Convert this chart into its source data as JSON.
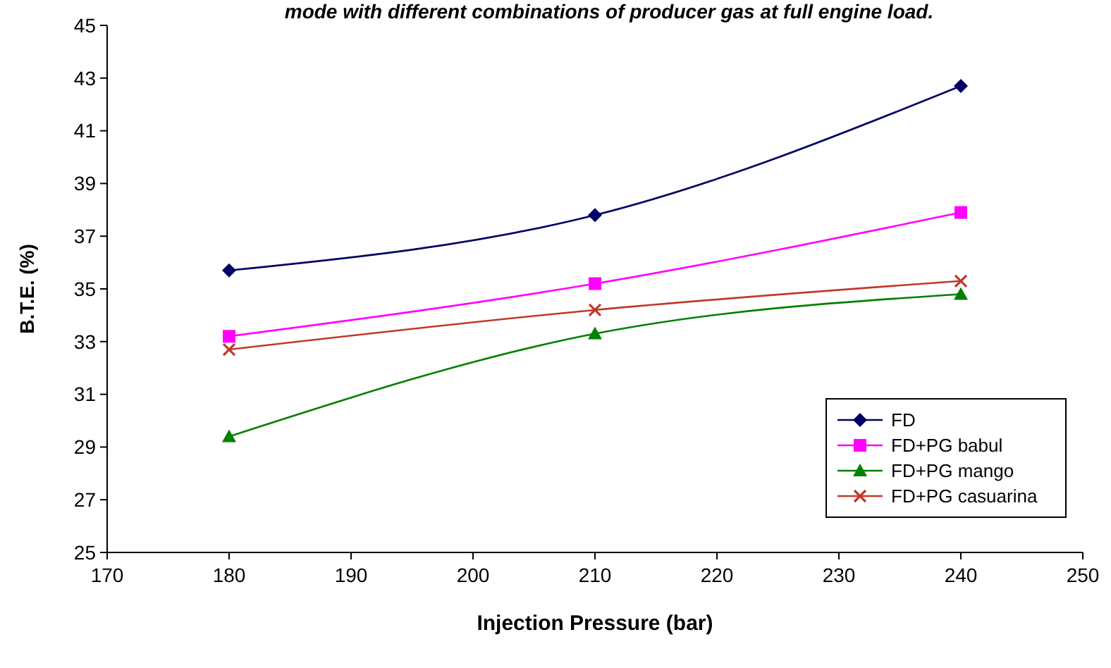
{
  "chart_data": {
    "type": "line",
    "title": "mode with different combinations of producer gas at full engine load.",
    "xlabel": "Injection Pressure (bar)",
    "ylabel": "B.T.E. (%)",
    "x": [
      180,
      210,
      240
    ],
    "xlim": [
      170,
      250
    ],
    "xticks": [
      170,
      180,
      190,
      200,
      210,
      220,
      230,
      240,
      250
    ],
    "ylim": [
      25,
      45
    ],
    "yticks": [
      25,
      27,
      29,
      31,
      33,
      35,
      37,
      39,
      41,
      43,
      45
    ],
    "grid": false,
    "legend": "bottom right",
    "series": [
      {
        "name": "FD",
        "color": "#000066",
        "values": [
          35.7,
          37.8,
          42.7
        ],
        "marker": "diamond"
      },
      {
        "name": "FD+PG babul",
        "color": "#ff00ff",
        "values": [
          33.2,
          35.2,
          37.9
        ],
        "marker": "square"
      },
      {
        "name": "FD+PG mango",
        "color": "#008000",
        "values": [
          29.4,
          33.3,
          34.8
        ],
        "marker": "triangle"
      },
      {
        "name": "FD+PG casuarina",
        "color": "#c0392b",
        "values": [
          32.7,
          34.2,
          35.3
        ],
        "marker": "cross"
      }
    ]
  }
}
